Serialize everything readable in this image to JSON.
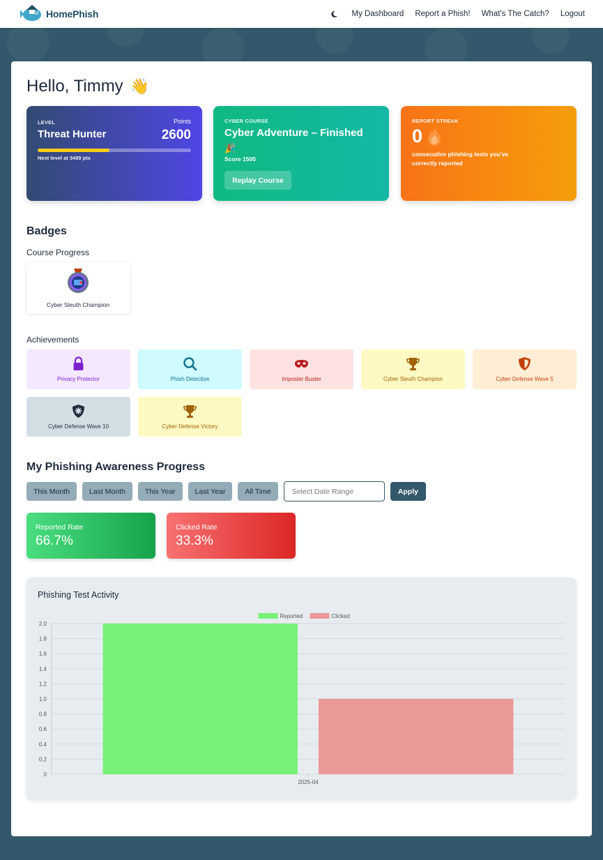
{
  "brand": {
    "name": "HomePhish"
  },
  "nav": {
    "items": [
      "My Dashboard",
      "Report a Phish!",
      "What's The Catch?",
      "Logout"
    ]
  },
  "greeting": {
    "text": "Hello, Timmy",
    "emoji": "👋"
  },
  "level_card": {
    "caption": "LEVEL",
    "name": "Threat Hunter",
    "points_label": "Points",
    "points": "2600",
    "next_level": "Next level at 3499 pts",
    "progress_fraction": 0.47,
    "bar_color": "#facc15"
  },
  "course_card": {
    "caption": "CYBER COURSE",
    "title": "Cyber Adventure – Finished",
    "emoji": "🎉",
    "score": "Score 1500",
    "button": "Replay Course"
  },
  "streak_card": {
    "caption": "REPORT STREAK",
    "value": "0",
    "icon": "flame-icon",
    "description": "consecutive phishing tests you've correctly reported"
  },
  "badges": {
    "title": "Badges",
    "course_progress_title": "Course Progress",
    "course_badge": {
      "label": "Cyber Sleuth Champion",
      "icon": "medal-icon"
    },
    "achievements_title": "Achievements",
    "achievements": [
      {
        "label": "Privacy Protector",
        "icon": "lock-icon",
        "bg": "#f3e8ff",
        "color": "#7e22ce"
      },
      {
        "label": "Phish Detective",
        "icon": "search-icon",
        "bg": "#cffafe",
        "color": "#0e7490"
      },
      {
        "label": "Imposter Buster",
        "icon": "mask-icon",
        "bg": "#fee2e2",
        "color": "#b91c1c"
      },
      {
        "label": "Cyber Sleuth Champion",
        "icon": "trophy-icon",
        "bg": "#fef9c3",
        "color": "#a16207"
      },
      {
        "label": "Cyber Defense Wave 5",
        "icon": "shield-icon",
        "bg": "#ffedd5",
        "color": "#c2410c"
      },
      {
        "label": "Cyber Defense Wave 10",
        "icon": "shield-virus-icon",
        "bg": "#d3dfe5",
        "color": "#1e293b"
      },
      {
        "label": "Cyber Defense Victory",
        "icon": "trophy-icon",
        "bg": "#fef9c3",
        "color": "#a16207"
      }
    ]
  },
  "progress": {
    "title": "My Phishing Awareness Progress",
    "filters": [
      "This Month",
      "Last Month",
      "This Year",
      "Last Year",
      "All Time"
    ],
    "date_placeholder": "Select Date Range",
    "apply": "Apply",
    "reported_label": "Reported Rate",
    "reported_value": "66.7%",
    "clicked_label": "Clicked Rate",
    "clicked_value": "33.3%"
  },
  "chart_data": {
    "type": "bar",
    "title": "Phishing Test Activity",
    "categories": [
      "2025-04"
    ],
    "series": [
      {
        "name": "Reported",
        "values": [
          2
        ],
        "color": "#77f277"
      },
      {
        "name": "Clicked",
        "values": [
          1
        ],
        "color": "#eb9898"
      }
    ],
    "ylim": [
      0,
      2
    ],
    "yticks": [
      "0",
      "0.2",
      "0.4",
      "0.6",
      "0.8",
      "1.0",
      "1.2",
      "1.4",
      "1.6",
      "1.8",
      "2.0"
    ],
    "legend": "top-center",
    "grid": true
  }
}
